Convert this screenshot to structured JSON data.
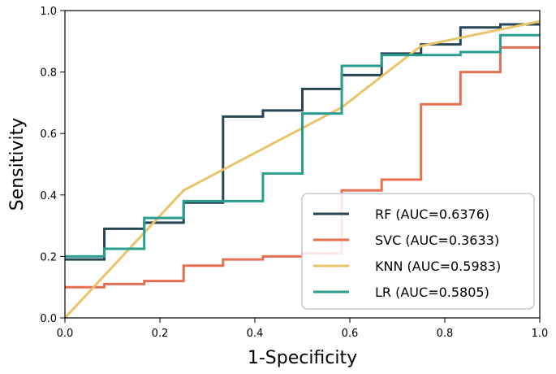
{
  "chart_data": {
    "type": "line",
    "title": "",
    "xlabel": "1-Specificity",
    "ylabel": "Sensitivity",
    "xlim": [
      0,
      1
    ],
    "ylim": [
      0,
      1
    ],
    "xticks": [
      "0.0",
      "0.2",
      "0.4",
      "0.6",
      "0.8",
      "1.0"
    ],
    "yticks": [
      "0.0",
      "0.2",
      "0.4",
      "0.6",
      "0.8",
      "1.0"
    ],
    "grid": false,
    "legend_position": "lower-right",
    "series": [
      {
        "name": "RF",
        "label": "RF (AUC=0.6376)",
        "color": "#264653",
        "step": true,
        "points": [
          [
            0,
            0.19
          ],
          [
            0.083,
            0.19
          ],
          [
            0.083,
            0.29
          ],
          [
            0.167,
            0.29
          ],
          [
            0.167,
            0.31
          ],
          [
            0.25,
            0.31
          ],
          [
            0.25,
            0.375
          ],
          [
            0.333,
            0.375
          ],
          [
            0.333,
            0.655
          ],
          [
            0.417,
            0.655
          ],
          [
            0.417,
            0.675
          ],
          [
            0.5,
            0.675
          ],
          [
            0.5,
            0.745
          ],
          [
            0.583,
            0.745
          ],
          [
            0.583,
            0.79
          ],
          [
            0.667,
            0.79
          ],
          [
            0.667,
            0.86
          ],
          [
            0.75,
            0.86
          ],
          [
            0.75,
            0.89
          ],
          [
            0.833,
            0.89
          ],
          [
            0.833,
            0.945
          ],
          [
            0.917,
            0.945
          ],
          [
            0.917,
            0.955
          ],
          [
            1.0,
            0.955
          ]
        ]
      },
      {
        "name": "SVC",
        "label": "SVC (AUC=0.3633)",
        "color": "#E76F51",
        "step": true,
        "points": [
          [
            0,
            0.1
          ],
          [
            0.083,
            0.1
          ],
          [
            0.083,
            0.11
          ],
          [
            0.167,
            0.11
          ],
          [
            0.167,
            0.12
          ],
          [
            0.25,
            0.12
          ],
          [
            0.25,
            0.17
          ],
          [
            0.333,
            0.17
          ],
          [
            0.333,
            0.19
          ],
          [
            0.417,
            0.19
          ],
          [
            0.417,
            0.2
          ],
          [
            0.5,
            0.2
          ],
          [
            0.5,
            0.21
          ],
          [
            0.583,
            0.21
          ],
          [
            0.583,
            0.415
          ],
          [
            0.667,
            0.415
          ],
          [
            0.667,
            0.45
          ],
          [
            0.75,
            0.45
          ],
          [
            0.75,
            0.695
          ],
          [
            0.833,
            0.695
          ],
          [
            0.833,
            0.8
          ],
          [
            0.917,
            0.8
          ],
          [
            0.917,
            0.88
          ],
          [
            1.0,
            0.88
          ]
        ]
      },
      {
        "name": "KNN",
        "label": "KNN (AUC=0.5983)",
        "color": "#E9C46A",
        "step": false,
        "points": [
          [
            0,
            0.0
          ],
          [
            0.25,
            0.415
          ],
          [
            0.583,
            0.685
          ],
          [
            0.75,
            0.885
          ],
          [
            1.0,
            0.965
          ]
        ]
      },
      {
        "name": "LR",
        "label": "LR (AUC=0.5805)",
        "color": "#2A9D8F",
        "step": true,
        "points": [
          [
            0,
            0.2
          ],
          [
            0.083,
            0.2
          ],
          [
            0.083,
            0.225
          ],
          [
            0.167,
            0.225
          ],
          [
            0.167,
            0.325
          ],
          [
            0.25,
            0.325
          ],
          [
            0.25,
            0.38
          ],
          [
            0.417,
            0.38
          ],
          [
            0.417,
            0.47
          ],
          [
            0.5,
            0.47
          ],
          [
            0.5,
            0.665
          ],
          [
            0.583,
            0.665
          ],
          [
            0.583,
            0.82
          ],
          [
            0.667,
            0.82
          ],
          [
            0.667,
            0.855
          ],
          [
            0.833,
            0.855
          ],
          [
            0.833,
            0.865
          ],
          [
            0.917,
            0.865
          ],
          [
            0.917,
            0.92
          ],
          [
            1.0,
            0.92
          ]
        ]
      }
    ]
  }
}
